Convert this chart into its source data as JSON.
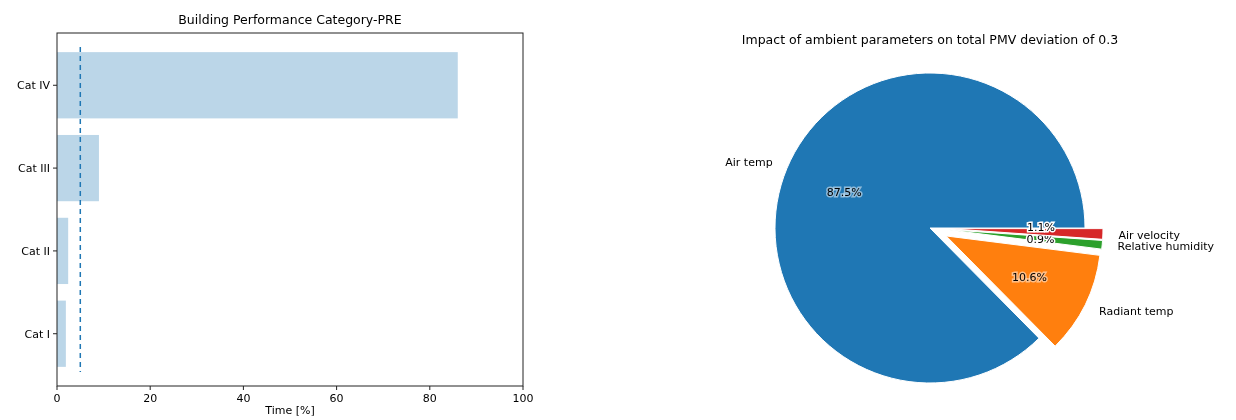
{
  "chart_data": [
    {
      "type": "bar",
      "orientation": "horizontal",
      "title": "Building Performance Category-PRE",
      "xlabel": "Time [%]",
      "categories": [
        "Cat IV",
        "Cat III",
        "Cat II",
        "Cat I"
      ],
      "values": [
        86,
        9,
        2.4,
        1.9
      ],
      "color": "#bbd6e8",
      "xlim": [
        0,
        100
      ],
      "xticks": [
        0,
        20,
        40,
        60,
        80,
        100
      ],
      "ref_lines": [
        {
          "axis": "x",
          "value": 5,
          "color": "#1f77b4",
          "line_style": "dashed"
        }
      ]
    },
    {
      "type": "pie",
      "title": "Impact of ambient parameters on total PMV deviation of 0.3",
      "categories": [
        "Air temp",
        "Radiant temp",
        "Relative humidity",
        "Air velocity"
      ],
      "values": [
        87.5,
        10.6,
        0.9,
        1.1
      ],
      "value_labels": [
        "87.5%",
        "10.6%",
        "0.9%",
        "1.1%"
      ],
      "colors": [
        "#1f77b4",
        "#ff7f0e",
        "#2ca02c",
        "#d62728"
      ]
    }
  ]
}
